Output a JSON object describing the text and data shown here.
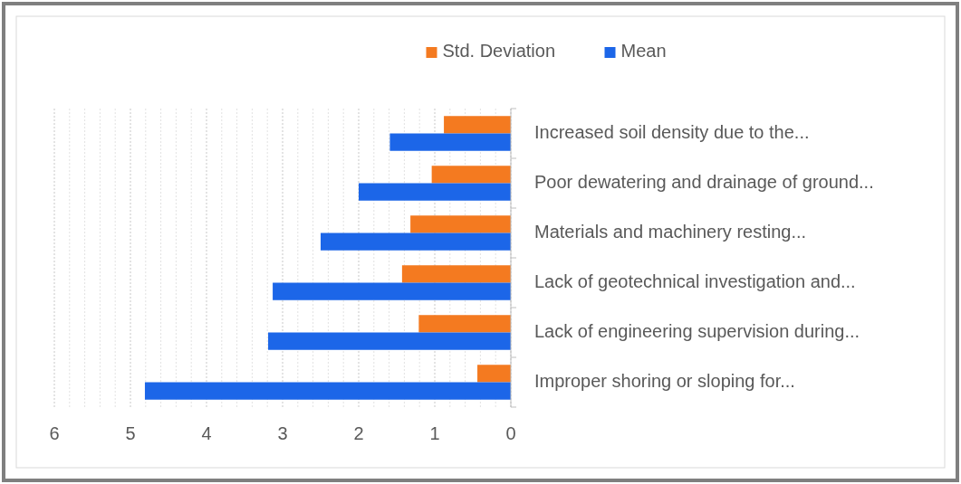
{
  "chart_data": {
    "type": "bar",
    "orientation": "horizontal",
    "categories": [
      "Increased soil density due to the...",
      "Poor dewatering and drainage of ground...",
      "Materials and machinery resting...",
      "Lack of geotechnical investigation and...",
      "Lack of engineering supervision during...",
      "Improper shoring or sloping for..."
    ],
    "series": [
      {
        "name": "Std. Deviation",
        "color": "#f47a20",
        "values": [
          0.88,
          1.04,
          1.32,
          1.43,
          1.21,
          0.44
        ]
      },
      {
        "name": "Mean",
        "color": "#1c66e8",
        "values": [
          1.59,
          2.0,
          2.5,
          3.13,
          3.19,
          4.81
        ]
      }
    ],
    "xlim": [
      6,
      0
    ],
    "xticks": [
      6,
      {
        "value": 5.8,
        "label": null
      },
      {
        "value": 5.6,
        "label": null
      },
      {
        "value": 5.4,
        "label": null
      },
      {
        "value": 5.2,
        "label": null
      },
      5,
      {
        "value": 4.8,
        "label": null
      },
      {
        "value": 4.6,
        "label": null
      },
      {
        "value": 4.4,
        "label": null
      },
      {
        "value": 4.2,
        "label": null
      },
      4,
      {
        "value": 3.8,
        "label": null
      },
      {
        "value": 3.6,
        "label": null
      },
      {
        "value": 3.4,
        "label": null
      },
      {
        "value": 3.2,
        "label": null
      },
      3,
      {
        "value": 2.8,
        "label": null
      },
      {
        "value": 2.6,
        "label": null
      },
      {
        "value": 2.4,
        "label": null
      },
      {
        "value": 2.2,
        "label": null
      },
      2,
      {
        "value": 1.8,
        "label": null
      },
      {
        "value": 1.6,
        "label": null
      },
      {
        "value": 1.4,
        "label": null
      },
      {
        "value": 1.2,
        "label": null
      },
      1,
      {
        "value": 0.8,
        "label": null
      },
      {
        "value": 0.6,
        "label": null
      },
      {
        "value": 0.4,
        "label": null
      },
      {
        "value": 0.2,
        "label": null
      },
      0
    ],
    "grid": "x",
    "legend": "top"
  }
}
